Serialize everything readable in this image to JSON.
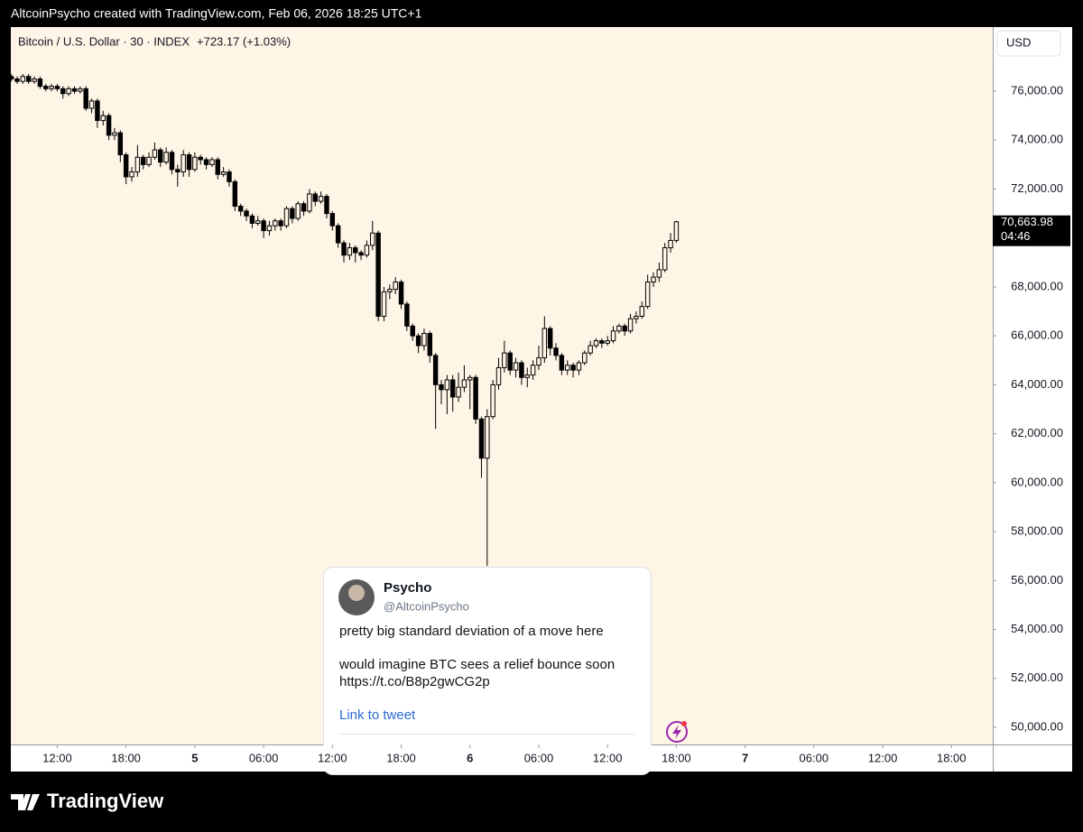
{
  "header": {
    "text": "AltcoinPsycho created with TradingView.com, Feb 06, 2026 18:25 UTC+1"
  },
  "chart_data": {
    "type": "candlestick",
    "title": "Bitcoin / U.S. Dollar · 30 · INDEX",
    "change": "+723.17 (+1.03%)",
    "currency": "USD",
    "last_price": {
      "value": 70663.98,
      "label": "70,663.98"
    },
    "countdown": "04:46",
    "up_color": "#fff5e6",
    "down_color": "#000000",
    "edge_color": "#000000",
    "x": [
      8,
      8.5,
      9,
      9.5,
      10,
      10.5,
      11,
      11.5,
      12,
      12.5,
      13,
      13.5,
      14,
      14.5,
      15,
      15.5,
      16,
      16.5,
      17,
      17.5,
      18,
      18.5,
      19,
      19.5,
      20,
      20.5,
      21,
      21.5,
      22,
      22.5,
      23,
      23.5,
      24,
      24.5,
      25,
      25.5,
      26,
      26.5,
      27,
      27.5,
      28,
      28.5,
      29,
      29.5,
      30,
      30.5,
      31,
      31.5,
      32,
      32.5,
      33,
      33.5,
      34,
      34.5,
      35,
      35.5,
      36,
      36.5,
      37,
      37.5,
      38,
      38.5,
      39,
      39.5,
      40,
      40.5,
      41,
      41.5,
      42,
      42.5,
      43,
      43.5,
      44,
      44.5,
      45,
      45.5,
      46,
      46.5,
      47,
      47.5,
      48,
      48.5,
      49,
      49.5,
      50,
      50.5,
      51,
      51.5,
      52,
      52.5,
      53,
      53.5,
      54,
      54.5,
      55,
      55.5,
      56,
      56.5,
      57,
      57.5,
      58,
      58.5,
      59,
      59.5,
      60,
      60.5,
      61,
      61.5,
      62,
      62.5,
      63,
      63.5,
      64,
      64.5,
      65,
      65.5,
      66
    ],
    "open": [
      76600,
      76500,
      76400,
      76600,
      76400,
      76500,
      76200,
      76100,
      76200,
      76100,
      75900,
      76100,
      76000,
      76100,
      75300,
      75600,
      74800,
      75000,
      74200,
      74300,
      73400,
      72500,
      72700,
      73300,
      73000,
      73300,
      73600,
      73100,
      73500,
      72800,
      72700,
      73400,
      72800,
      73300,
      73200,
      73000,
      73200,
      72600,
      72700,
      72300,
      71300,
      71100,
      70900,
      70600,
      70700,
      70300,
      70500,
      70700,
      70500,
      71200,
      70800,
      71400,
      71100,
      71800,
      71500,
      71700,
      71000,
      70500,
      69800,
      69300,
      69600,
      69400,
      69300,
      69700,
      70200,
      66800,
      67800,
      67900,
      68200,
      67300,
      66400,
      66000,
      65600,
      66100,
      65200,
      64000,
      63800,
      64200,
      63500,
      63900,
      64200,
      64300,
      62600,
      61000,
      62700,
      64000,
      64700,
      65300,
      64600,
      64900,
      64300,
      64400,
      64800,
      65100,
      66300,
      65500,
      65200,
      64600,
      64800,
      64600,
      64900,
      65300,
      65600,
      65800,
      65700,
      65800,
      66200,
      66400,
      66200,
      66700,
      66800,
      67200,
      68200,
      68400,
      68700,
      69600,
      69900
    ],
    "high": [
      76700,
      76600,
      76700,
      76700,
      76600,
      76600,
      76300,
      76300,
      76300,
      76200,
      76200,
      76200,
      76200,
      76200,
      75700,
      75700,
      75200,
      75100,
      74500,
      74400,
      73500,
      72900,
      73800,
      73400,
      73500,
      73900,
      73700,
      73700,
      73600,
      73000,
      73600,
      73500,
      73500,
      73400,
      73300,
      73300,
      73300,
      72900,
      72800,
      72400,
      71400,
      71200,
      71000,
      70900,
      70800,
      70700,
      70800,
      70800,
      71300,
      71300,
      71500,
      71500,
      72000,
      71900,
      71900,
      71800,
      71100,
      70600,
      69900,
      69800,
      69700,
      69500,
      69900,
      70700,
      70300,
      68000,
      68100,
      68400,
      68300,
      67400,
      66500,
      66100,
      66300,
      66200,
      65300,
      64200,
      64400,
      64400,
      64500,
      64800,
      64400,
      64400,
      62700,
      63000,
      64200,
      65100,
      65800,
      65400,
      65100,
      65000,
      64700,
      65000,
      65600,
      66800,
      66400,
      65700,
      65300,
      65000,
      64900,
      65000,
      65400,
      65800,
      65900,
      65900,
      66000,
      66400,
      66500,
      66500,
      66900,
      67000,
      67400,
      68500,
      68600,
      69000,
      69800,
      70200,
      70700
    ],
    "low": [
      76400,
      76300,
      76300,
      76300,
      76300,
      76100,
      76000,
      76000,
      76000,
      75700,
      75800,
      75900,
      75900,
      75200,
      75100,
      74500,
      74600,
      74000,
      74000,
      73100,
      72200,
      72300,
      72500,
      72800,
      72900,
      73200,
      72900,
      73000,
      72600,
      72100,
      72500,
      72500,
      72700,
      73000,
      72800,
      72900,
      72400,
      72500,
      72100,
      71100,
      70900,
      70700,
      70400,
      70500,
      70000,
      70100,
      70300,
      70300,
      70400,
      70600,
      70700,
      70900,
      71000,
      71300,
      71400,
      70800,
      70300,
      69600,
      69000,
      69100,
      69000,
      69100,
      69200,
      69500,
      66600,
      66600,
      67500,
      67700,
      67100,
      66200,
      65800,
      65300,
      65400,
      64900,
      62200,
      63200,
      62800,
      62900,
      63300,
      63700,
      63000,
      62400,
      60200,
      56600,
      62600,
      63800,
      64500,
      64400,
      64300,
      64000,
      63900,
      64200,
      64600,
      64900,
      65200,
      65000,
      64400,
      64400,
      64300,
      64400,
      64800,
      65200,
      65500,
      65500,
      65600,
      65700,
      66100,
      66000,
      66100,
      66500,
      66700,
      67100,
      68000,
      68200,
      68600,
      69400,
      69800
    ],
    "close": [
      76500,
      76400,
      76600,
      76400,
      76500,
      76200,
      76100,
      76200,
      76100,
      75900,
      76100,
      76000,
      76100,
      75300,
      75600,
      74800,
      75000,
      74200,
      74300,
      73400,
      72500,
      72700,
      73300,
      73000,
      73300,
      73600,
      73100,
      73500,
      72800,
      72700,
      73400,
      72800,
      73300,
      73200,
      73000,
      73200,
      72600,
      72700,
      72300,
      71300,
      71100,
      70900,
      70600,
      70700,
      70300,
      70500,
      70700,
      70500,
      71200,
      70800,
      71400,
      71100,
      71800,
      71500,
      71700,
      71000,
      70500,
      69800,
      69300,
      69600,
      69400,
      69300,
      69700,
      70200,
      66800,
      67800,
      67900,
      68200,
      67300,
      66400,
      66000,
      65600,
      66100,
      65200,
      64000,
      63800,
      64200,
      63500,
      63900,
      64200,
      64300,
      62600,
      61000,
      62700,
      64000,
      64700,
      65300,
      64600,
      64900,
      64300,
      64400,
      64800,
      65100,
      66300,
      65500,
      65200,
      64600,
      64800,
      64600,
      64900,
      65300,
      65600,
      65800,
      65700,
      65800,
      66200,
      66400,
      66200,
      66700,
      66800,
      67200,
      68200,
      68400,
      68700,
      69600,
      69900,
      70663.98
    ],
    "ylim": [
      49300,
      78620
    ],
    "yticks": [
      {
        "value": 50000,
        "label": "50,000.00"
      },
      {
        "value": 52000,
        "label": "52,000.00"
      },
      {
        "value": 54000,
        "label": "54,000.00"
      },
      {
        "value": 56000,
        "label": "56,000.00"
      },
      {
        "value": 58000,
        "label": "58,000.00"
      },
      {
        "value": 60000,
        "label": "60,000.00"
      },
      {
        "value": 62000,
        "label": "62,000.00"
      },
      {
        "value": 64000,
        "label": "64,000.00"
      },
      {
        "value": 66000,
        "label": "66,000.00"
      },
      {
        "value": 68000,
        "label": "68,000.00"
      },
      {
        "value": 70000,
        "label": "70,000.00"
      },
      {
        "value": 72000,
        "label": "72,000.00"
      },
      {
        "value": 74000,
        "label": "74,000.00"
      },
      {
        "value": 76000,
        "label": "76,000.00"
      }
    ],
    "xlim": [
      7.95,
      93.6
    ],
    "xticks": [
      {
        "value": 12,
        "label": "12:00"
      },
      {
        "value": 18,
        "label": "18:00"
      },
      {
        "value": 24,
        "label": "5"
      },
      {
        "value": 30,
        "label": "06:00"
      },
      {
        "value": 36,
        "label": "12:00"
      },
      {
        "value": 42,
        "label": "18:00"
      },
      {
        "value": 48,
        "label": "6"
      },
      {
        "value": 54,
        "label": "06:00"
      },
      {
        "value": 60,
        "label": "12:00"
      },
      {
        "value": 66,
        "label": "18:00"
      },
      {
        "value": 72,
        "label": "7"
      },
      {
        "value": 78,
        "label": "06:00"
      },
      {
        "value": 84,
        "label": "12:00"
      },
      {
        "value": 90,
        "label": "18:00"
      }
    ]
  },
  "tweet": {
    "name": "Psycho",
    "handle": "@AltcoinPsycho",
    "lines": [
      "pretty big standard deviation of a move here",
      "would imagine BTC sees a relief bounce soon",
      "https://t.co/B8p2gwCG2p"
    ],
    "link": "Link to tweet"
  },
  "footer": {
    "logo": "TradingView"
  }
}
